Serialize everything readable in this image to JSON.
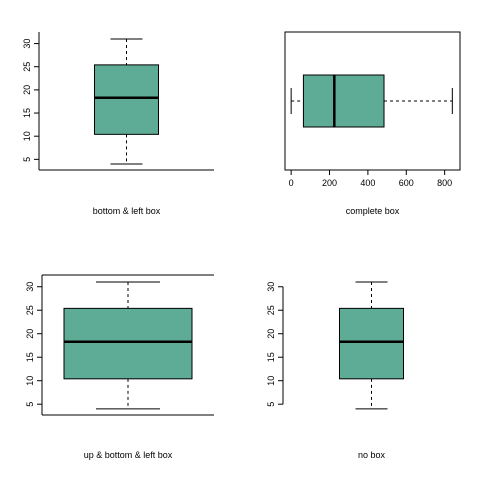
{
  "colors": {
    "box_fill": "#5fac96",
    "ink": "#000000"
  },
  "chart_data": [
    {
      "type": "boxplot",
      "orientation": "vertical",
      "caption": "bottom & left box",
      "frame": "bottom-left",
      "ylim": [
        2.7,
        32.5
      ],
      "yticks": [
        "5",
        "10",
        "15",
        "20",
        "25",
        "30"
      ],
      "stats": {
        "min": 4,
        "q1": 10.4,
        "median": 18.3,
        "q3": 25.4,
        "max": 31
      }
    },
    {
      "type": "boxplot",
      "orientation": "horizontal",
      "caption": "complete box",
      "frame": "complete",
      "xlim": [
        -32,
        880
      ],
      "xticks": [
        "0",
        "200",
        "400",
        "600",
        "800"
      ],
      "stats": {
        "min": 0,
        "q1": 64,
        "median": 225,
        "q3": 484,
        "max": 840
      }
    },
    {
      "type": "boxplot",
      "orientation": "vertical",
      "caption": "up & bottom & left box",
      "frame": "top-bottom-left",
      "ylim": [
        2.7,
        32.5
      ],
      "yticks": [
        "5",
        "10",
        "15",
        "20",
        "25",
        "30"
      ],
      "stats": {
        "min": 4,
        "q1": 10.4,
        "median": 18.3,
        "q3": 25.4,
        "max": 31
      }
    },
    {
      "type": "boxplot",
      "orientation": "vertical",
      "caption": "no box",
      "frame": "none",
      "ylim": [
        2.7,
        32.5
      ],
      "yticks": [
        "5",
        "10",
        "15",
        "20",
        "25",
        "30"
      ],
      "stats": {
        "min": 4,
        "q1": 10.4,
        "median": 18.3,
        "q3": 25.4,
        "max": 31
      }
    }
  ]
}
